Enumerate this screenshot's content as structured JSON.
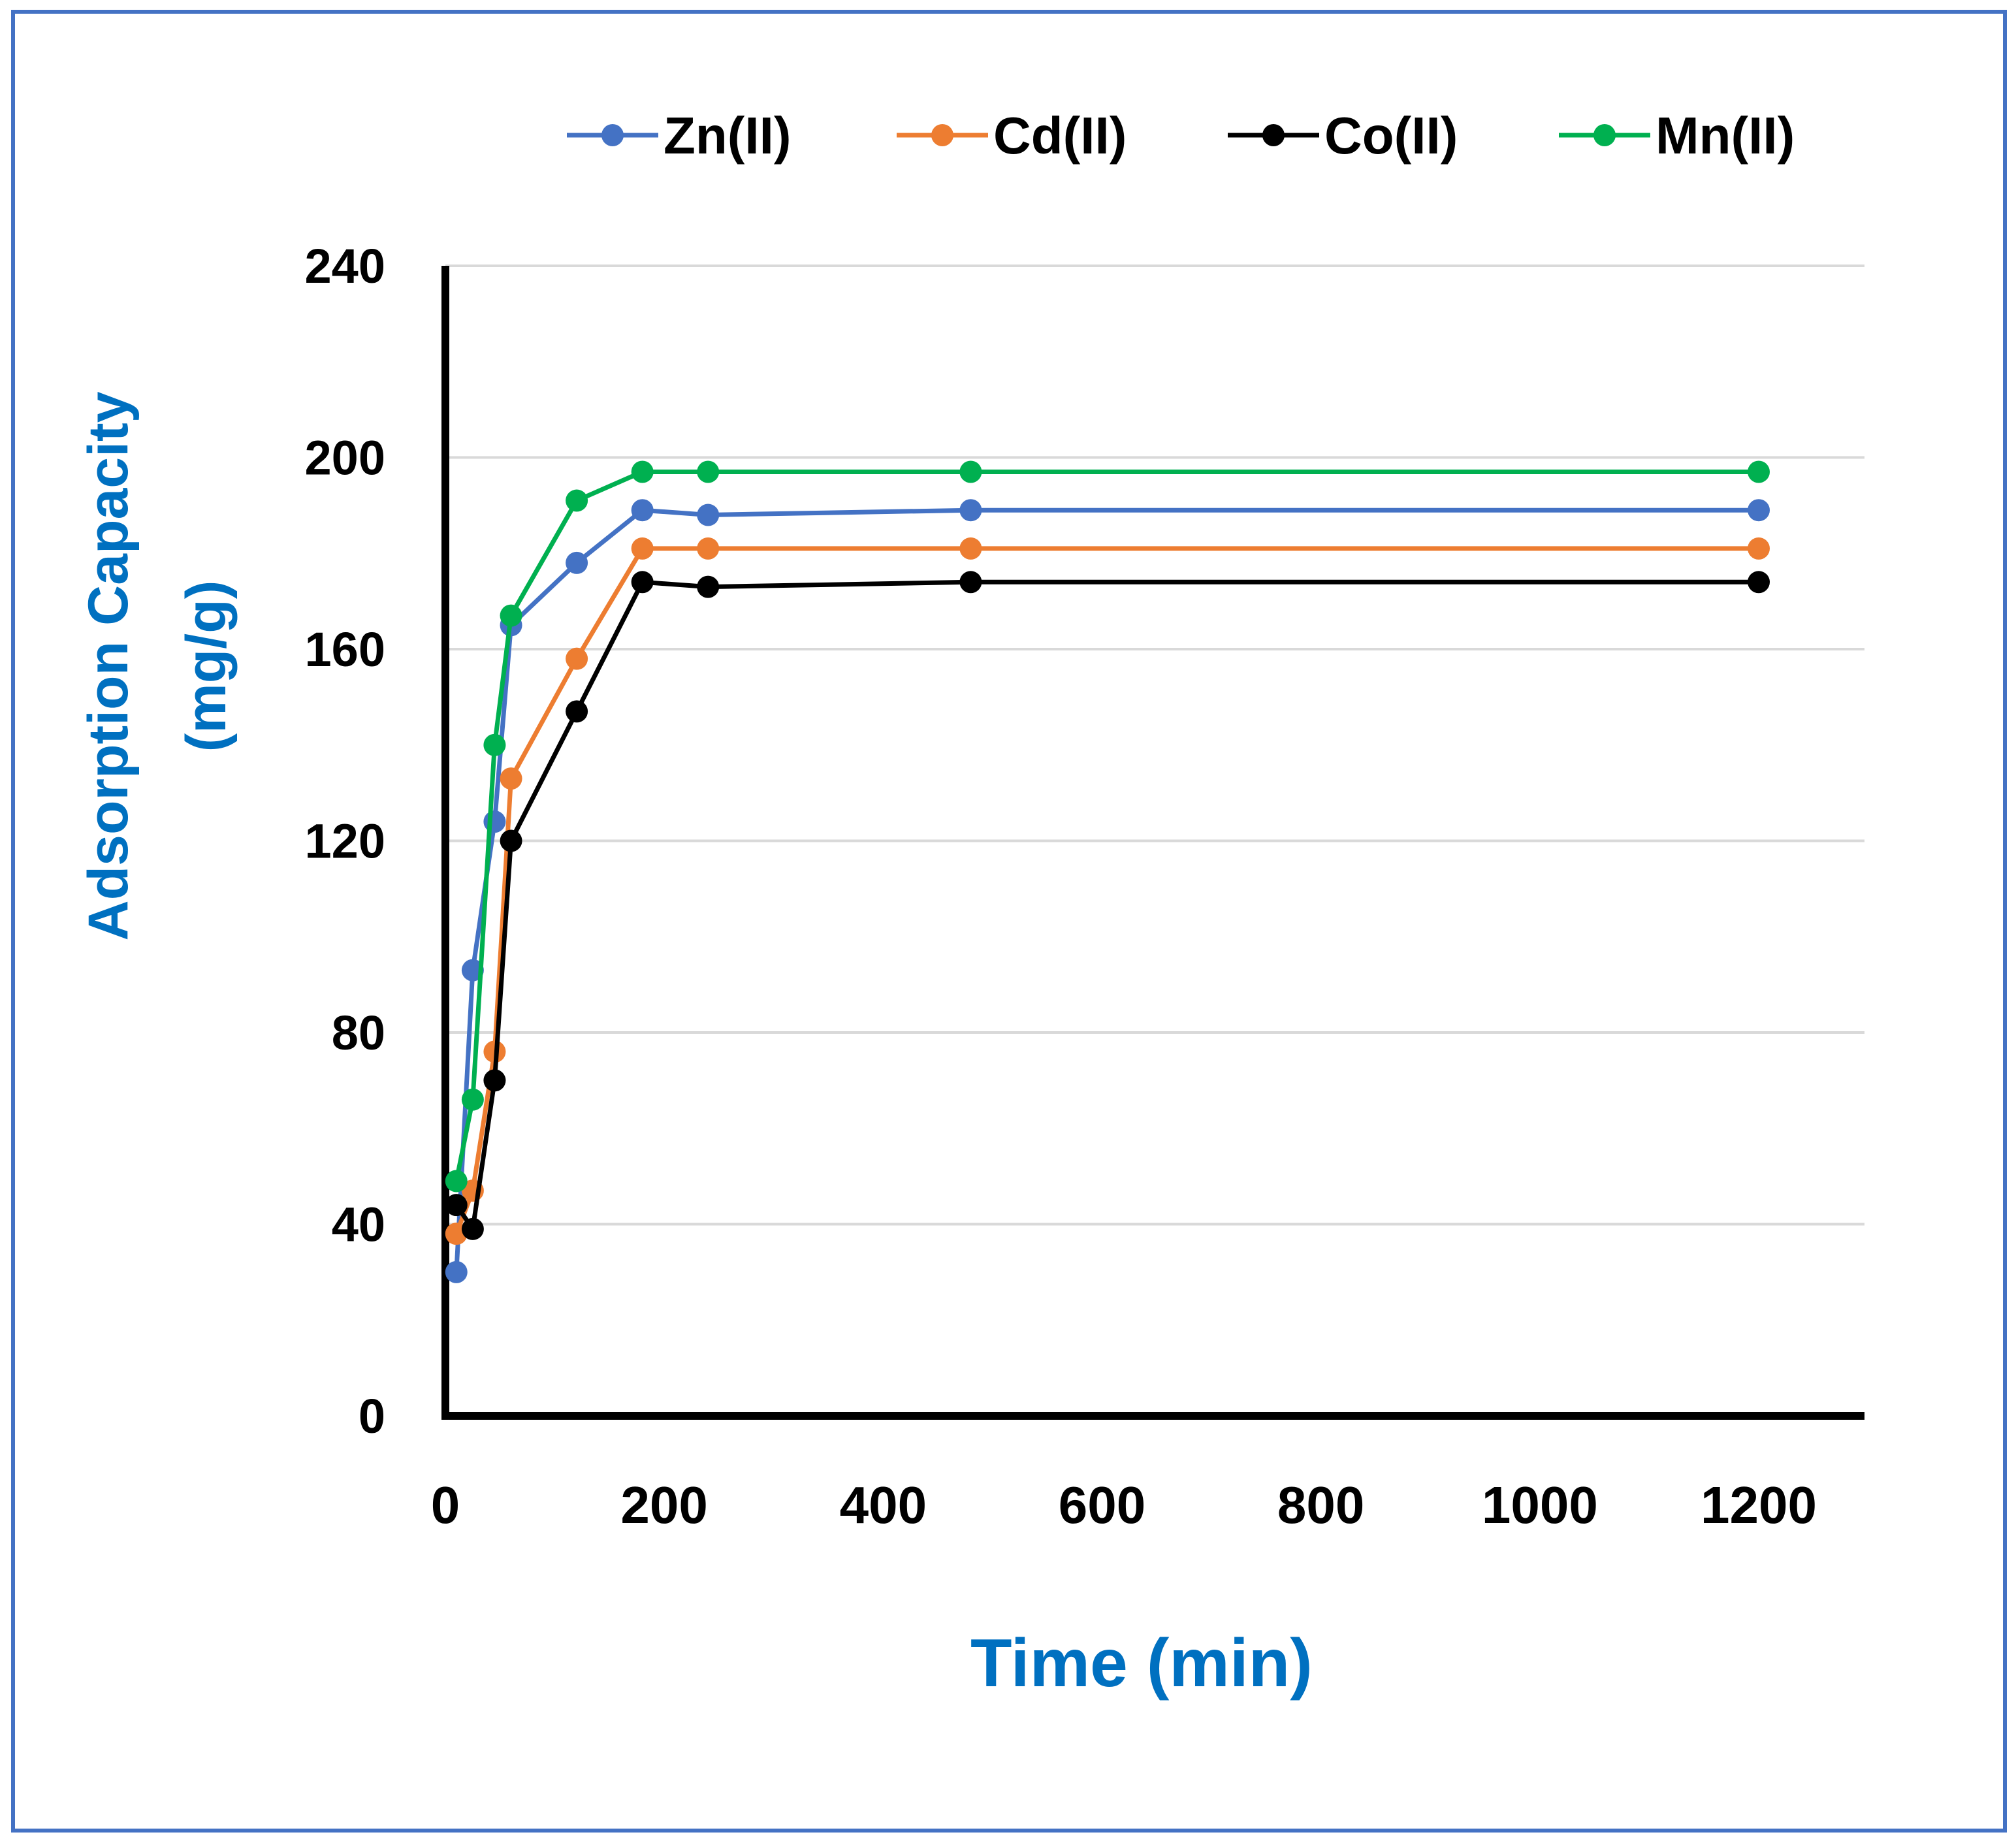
{
  "colors": {
    "frame": "#4472C4",
    "axis": "#000000",
    "grid": "#D9D9D9",
    "axis_title": "#0070C0"
  },
  "chart_data": {
    "type": "line",
    "title": "",
    "xlabel": "Time (min)",
    "ylabel_line1": "Adsorption Capacity",
    "ylabel_line2": "(mg/g)",
    "xlim": [
      0,
      1300
    ],
    "ylim": [
      0,
      240
    ],
    "xticks": [
      0,
      200,
      400,
      600,
      800,
      1000,
      1200
    ],
    "yticks": [
      0,
      40,
      80,
      120,
      160,
      200,
      240
    ],
    "grid": true,
    "legend_position": "top",
    "series": [
      {
        "name": "Zn(II)",
        "color": "#4472C4",
        "points": [
          [
            10,
            30
          ],
          [
            25,
            93
          ],
          [
            45,
            124
          ],
          [
            60,
            165
          ],
          [
            120,
            178
          ],
          [
            180,
            189
          ],
          [
            240,
            188
          ],
          [
            480,
            189
          ],
          [
            1200,
            189
          ]
        ]
      },
      {
        "name": "Cd(II)",
        "color": "#ED7D31",
        "points": [
          [
            10,
            38
          ],
          [
            25,
            47
          ],
          [
            45,
            76
          ],
          [
            60,
            133
          ],
          [
            120,
            158
          ],
          [
            180,
            181
          ],
          [
            240,
            181
          ],
          [
            480,
            181
          ],
          [
            1200,
            181
          ]
        ]
      },
      {
        "name": "Co(II)",
        "color": "#000000",
        "points": [
          [
            10,
            44
          ],
          [
            25,
            39
          ],
          [
            45,
            70
          ],
          [
            60,
            120
          ],
          [
            120,
            147
          ],
          [
            180,
            174
          ],
          [
            240,
            173
          ],
          [
            480,
            174
          ],
          [
            1200,
            174
          ]
        ]
      },
      {
        "name": "Mn(II)",
        "color": "#00B050",
        "points": [
          [
            10,
            49
          ],
          [
            25,
            66
          ],
          [
            45,
            140
          ],
          [
            60,
            167
          ],
          [
            120,
            191
          ],
          [
            180,
            197
          ],
          [
            240,
            197
          ],
          [
            480,
            197
          ],
          [
            1200,
            197
          ]
        ]
      }
    ]
  }
}
